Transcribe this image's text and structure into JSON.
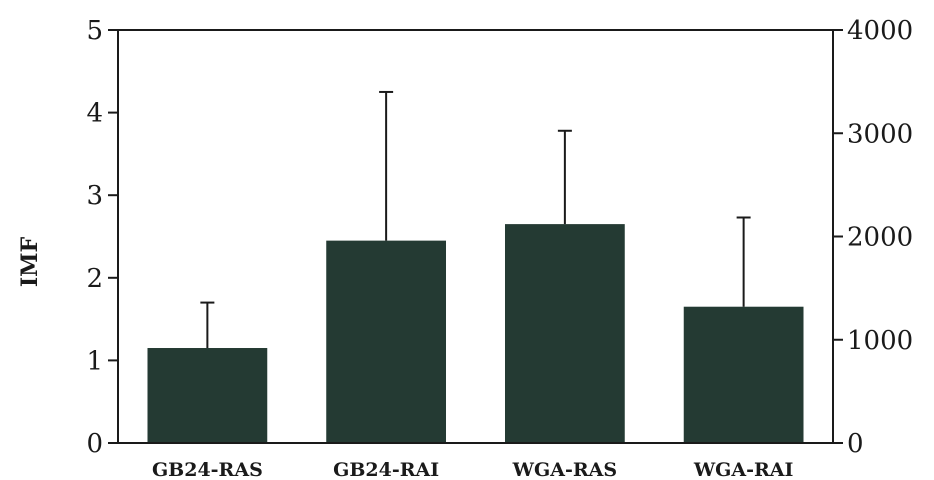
{
  "chart_data": {
    "type": "bar",
    "title": "",
    "xlabel": "",
    "ylabel": "IMF",
    "categories": [
      "GB24-RAS",
      "GB24-RAI",
      "WGA-RAS",
      "WGA-RAI"
    ],
    "values": [
      1.15,
      2.45,
      2.65,
      1.65
    ],
    "error_upper": [
      1.7,
      4.25,
      3.78,
      2.73
    ],
    "ylim": [
      0,
      5
    ],
    "yticks": [
      "0",
      "1",
      "2",
      "3",
      "4",
      "5"
    ],
    "y2lim": [
      0,
      4000
    ],
    "y2ticks": [
      "0",
      "1000",
      "2000",
      "3000",
      "4000"
    ],
    "grid": false,
    "legend": "none",
    "bar_color": "#243a33",
    "axis_color": "#1a1a1a"
  }
}
